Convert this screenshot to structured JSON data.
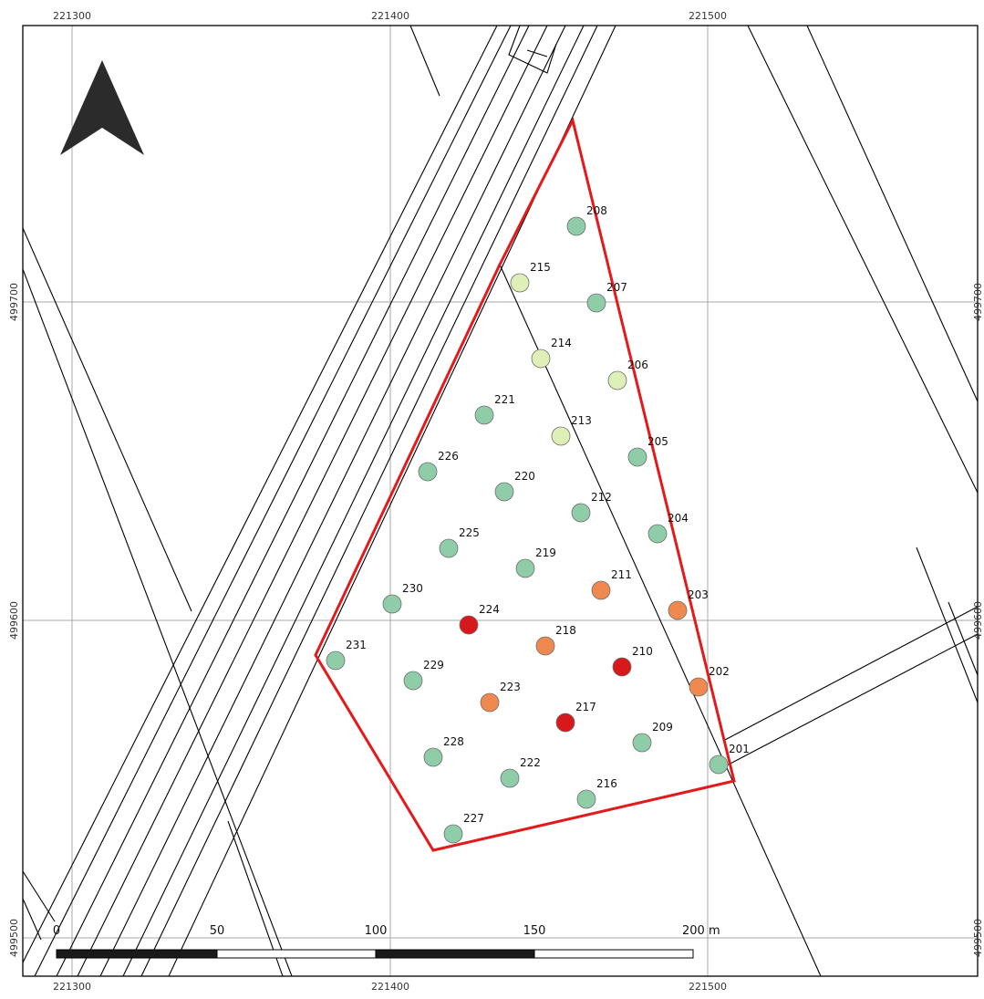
{
  "map": {
    "north_arrow": "north-arrow-icon",
    "grid": {
      "top_labels": [
        "221300",
        "221400",
        "221500"
      ],
      "bottom_labels": [
        "221300",
        "221400",
        "221500"
      ],
      "left_labels": [
        "499700",
        "499600",
        "499500"
      ],
      "right_labels": [
        "499700",
        "499600",
        "499500"
      ]
    },
    "scale_bar": {
      "labels": [
        "0",
        "50",
        "100",
        "150",
        "200 m"
      ]
    },
    "colors": {
      "boundary": "#e31a1c",
      "green": "#8fcca8",
      "pale": "#dfefb8",
      "orange": "#f0894f",
      "red": "#d7191c",
      "grid": "#a9a9a9",
      "lines": "#000000"
    },
    "points": [
      {
        "id": "201",
        "class": "green"
      },
      {
        "id": "202",
        "class": "orange"
      },
      {
        "id": "203",
        "class": "orange"
      },
      {
        "id": "204",
        "class": "green"
      },
      {
        "id": "205",
        "class": "green"
      },
      {
        "id": "206",
        "class": "pale"
      },
      {
        "id": "207",
        "class": "green"
      },
      {
        "id": "208",
        "class": "green"
      },
      {
        "id": "209",
        "class": "green"
      },
      {
        "id": "210",
        "class": "red"
      },
      {
        "id": "211",
        "class": "orange"
      },
      {
        "id": "212",
        "class": "green"
      },
      {
        "id": "213",
        "class": "pale"
      },
      {
        "id": "214",
        "class": "pale"
      },
      {
        "id": "215",
        "class": "pale"
      },
      {
        "id": "216",
        "class": "green"
      },
      {
        "id": "217",
        "class": "red"
      },
      {
        "id": "218",
        "class": "orange"
      },
      {
        "id": "219",
        "class": "green"
      },
      {
        "id": "220",
        "class": "green"
      },
      {
        "id": "221",
        "class": "green"
      },
      {
        "id": "222",
        "class": "green"
      },
      {
        "id": "223",
        "class": "orange"
      },
      {
        "id": "224",
        "class": "red"
      },
      {
        "id": "225",
        "class": "green"
      },
      {
        "id": "226",
        "class": "green"
      },
      {
        "id": "227",
        "class": "green"
      },
      {
        "id": "228",
        "class": "green"
      },
      {
        "id": "229",
        "class": "green"
      },
      {
        "id": "230",
        "class": "green"
      },
      {
        "id": "231",
        "class": "green"
      }
    ]
  }
}
